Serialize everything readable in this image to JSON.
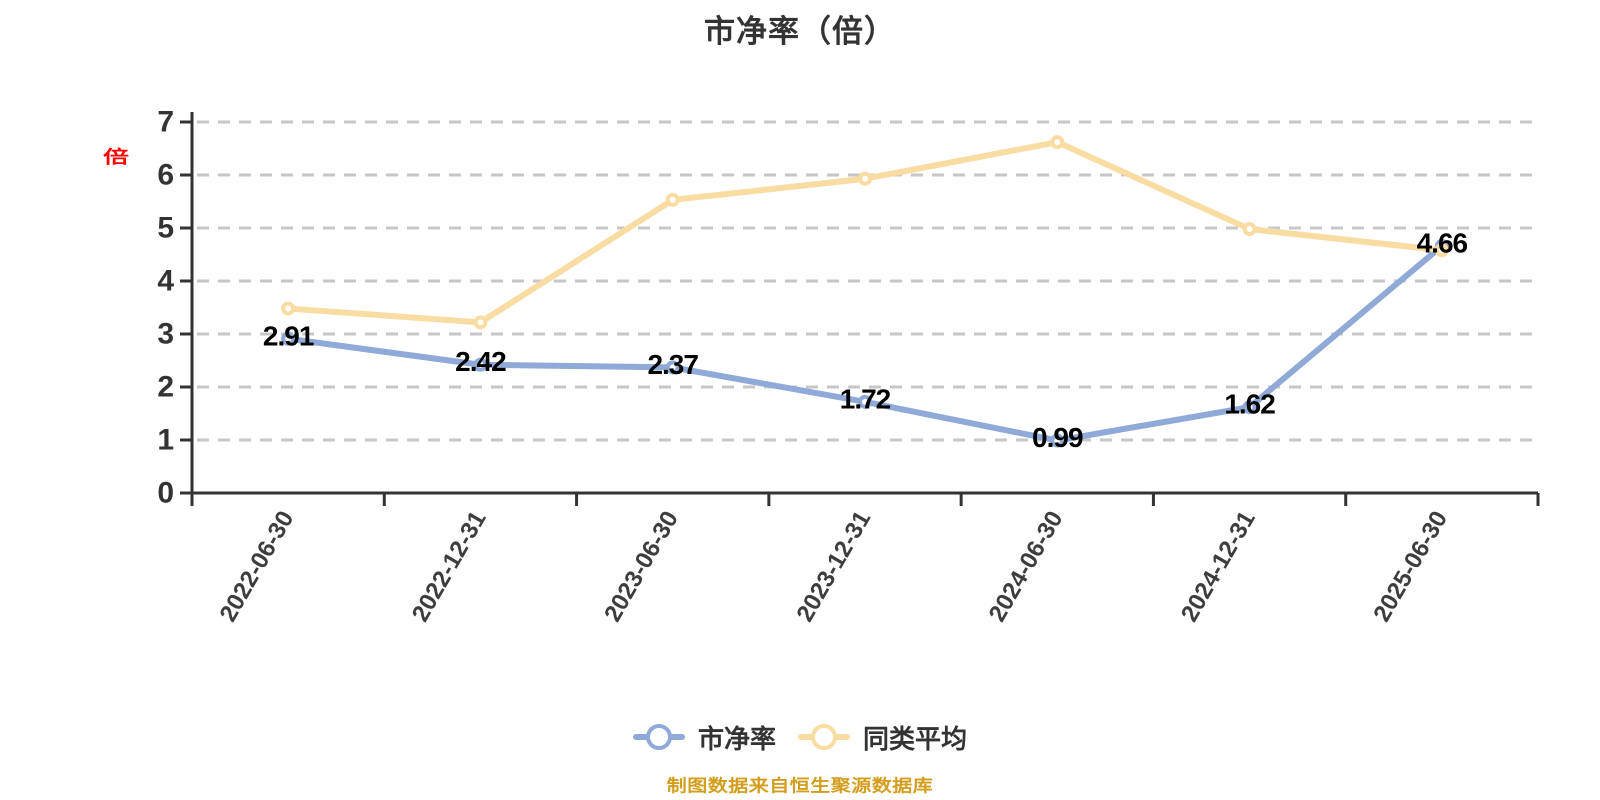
{
  "title": "市净率（倍）",
  "y_axis_unit": "倍",
  "footer_note": "制图数据来自恒生聚源数据库",
  "colors": {
    "title_text": "#333333",
    "axis_line": "#333333",
    "grid_line": "#c7c7c7",
    "tick_label": "#333333",
    "value_label": "#000000",
    "unit_text": "#ff0000",
    "footer_text": "#d39e1e",
    "series_pb": "#8fa9d8",
    "series_avg": "#f8dca2",
    "marker_fill": "#ffffff"
  },
  "chart_data": {
    "type": "line",
    "title": "市净率（倍）",
    "categories": [
      "2022-06-30",
      "2022-12-31",
      "2023-06-30",
      "2023-12-31",
      "2024-06-30",
      "2024-12-31",
      "2025-06-30"
    ],
    "series": [
      {
        "name": "市净率",
        "color": "#8fa9d8",
        "values": [
          2.91,
          2.42,
          2.37,
          1.72,
          0.99,
          1.62,
          4.66
        ],
        "point_labels": [
          "2.91",
          "2.42",
          "2.37",
          "1.72",
          "0.99",
          "1.62",
          "4.66"
        ],
        "show_labels": true
      },
      {
        "name": "同类平均",
        "color": "#f8dca2",
        "values": [
          3.48,
          3.22,
          5.53,
          5.93,
          6.62,
          4.98,
          4.58
        ],
        "show_labels": false
      }
    ],
    "ylim": [
      0,
      7
    ],
    "yticks": [
      0,
      1,
      2,
      3,
      4,
      5,
      6,
      7
    ],
    "x_label_rotation_deg": 60,
    "grid": "horizontal dashed",
    "legend_position": "bottom"
  }
}
